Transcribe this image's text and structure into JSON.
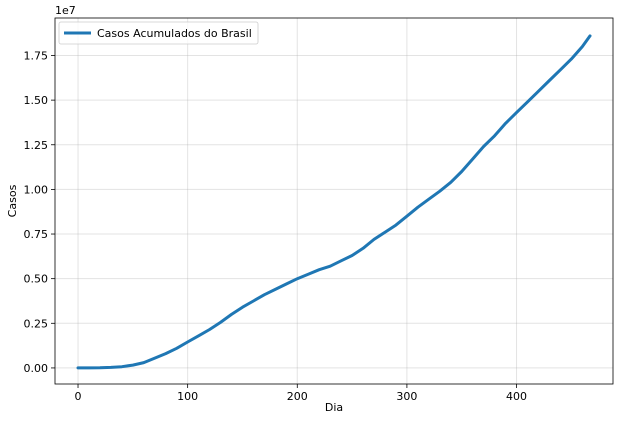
{
  "chart_data": {
    "type": "line",
    "title": "",
    "xlabel": "Dia",
    "ylabel": "Casos",
    "offset_text": "1e7",
    "y_scale_factor": 10000000,
    "xlim": [
      -21,
      488
    ],
    "ylim": [
      -0.09,
      1.96
    ],
    "x_ticks": [
      0,
      100,
      200,
      300,
      400
    ],
    "x_tick_labels": [
      "0",
      "100",
      "200",
      "300",
      "400"
    ],
    "y_ticks": [
      0.0,
      0.25,
      0.5,
      0.75,
      1.0,
      1.25,
      1.5,
      1.75
    ],
    "y_tick_labels": [
      "0.00",
      "0.25",
      "0.50",
      "0.75",
      "1.00",
      "1.25",
      "1.50",
      "1.75"
    ],
    "grid": true,
    "legend_placement": "top-left",
    "series": [
      {
        "name": "Casos Acumulados do Brasil",
        "color": "#1f77b4",
        "x": [
          0,
          10,
          20,
          30,
          40,
          50,
          60,
          70,
          80,
          90,
          100,
          110,
          120,
          130,
          140,
          150,
          160,
          170,
          180,
          190,
          200,
          210,
          220,
          230,
          240,
          250,
          260,
          270,
          280,
          290,
          300,
          310,
          320,
          330,
          340,
          350,
          360,
          370,
          380,
          390,
          400,
          410,
          420,
          430,
          440,
          450,
          460,
          467
        ],
        "y": [
          0.0,
          0.0002,
          0.0009,
          0.003,
          0.007,
          0.016,
          0.03,
          0.055,
          0.08,
          0.11,
          0.145,
          0.18,
          0.215,
          0.255,
          0.3,
          0.34,
          0.375,
          0.41,
          0.44,
          0.47,
          0.5,
          0.525,
          0.55,
          0.57,
          0.6,
          0.63,
          0.67,
          0.72,
          0.76,
          0.8,
          0.85,
          0.9,
          0.945,
          0.99,
          1.04,
          1.1,
          1.17,
          1.24,
          1.3,
          1.37,
          1.43,
          1.49,
          1.55,
          1.61,
          1.67,
          1.73,
          1.8,
          1.86
        ]
      }
    ]
  }
}
